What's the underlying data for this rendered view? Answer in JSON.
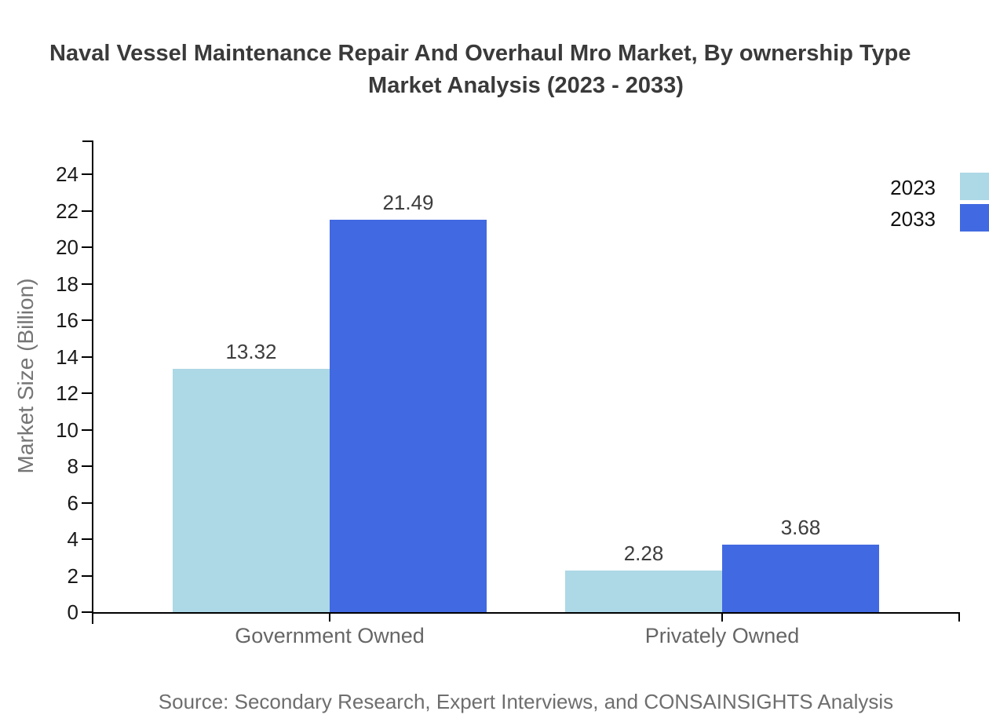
{
  "title": {
    "line1": "Naval Vessel Maintenance Repair And Overhaul Mro Market, By ownership Type",
    "line2": "Market Analysis (2023 - 2033)"
  },
  "source": "Source: Secondary Research, Expert Interviews, and CONSAINSIGHTS Analysis",
  "colors": {
    "series_2023": "#ADD8E6",
    "series_2033": "#4169E1",
    "axis": "#000000",
    "title_text": "#3A3A3A",
    "tick_text": "#1A1A1A",
    "value_text": "#3D3D3D",
    "category_text": "#666666",
    "muted_text": "#6E6E6E"
  },
  "chart_data": {
    "type": "bar",
    "title": "Naval Vessel Maintenance Repair And Overhaul Mro Market, By ownership Type Market Analysis (2023 - 2033)",
    "categories": [
      "Government Owned",
      "Privately Owned"
    ],
    "series": [
      {
        "name": "2023",
        "color": "#ADD8E6",
        "values": [
          13.32,
          2.28
        ]
      },
      {
        "name": "2033",
        "color": "#4169E1",
        "values": [
          21.49,
          3.68
        ]
      }
    ],
    "xlabel": "",
    "ylabel": "Market Size (Billion)",
    "ylim": [
      0,
      25.8
    ],
    "yticks": [
      0,
      2,
      4,
      6,
      8,
      10,
      12,
      14,
      16,
      18,
      20,
      22,
      24
    ],
    "grid": false,
    "value_labels_shown": true,
    "legend": {
      "position": "top-right",
      "entries": [
        "2023",
        "2033"
      ]
    }
  }
}
